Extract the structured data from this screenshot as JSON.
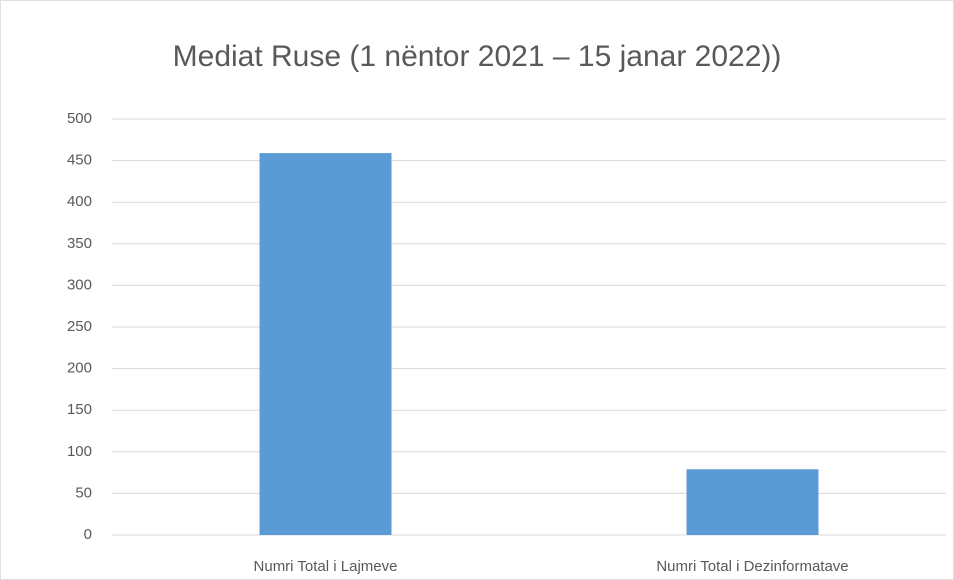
{
  "chart_data": {
    "type": "bar",
    "title": "Mediat Ruse (1 nëntor 2021 – 15 janar 2022))",
    "categories": [
      "Numri Total i Lajmeve",
      "Numri Total i Dezinformatave"
    ],
    "values": [
      459,
      79
    ],
    "color": "#5b9bd5",
    "ylim": [
      0,
      500
    ],
    "yticks": [
      0,
      50,
      100,
      150,
      200,
      250,
      300,
      350,
      400,
      450,
      500
    ],
    "grid": true
  }
}
